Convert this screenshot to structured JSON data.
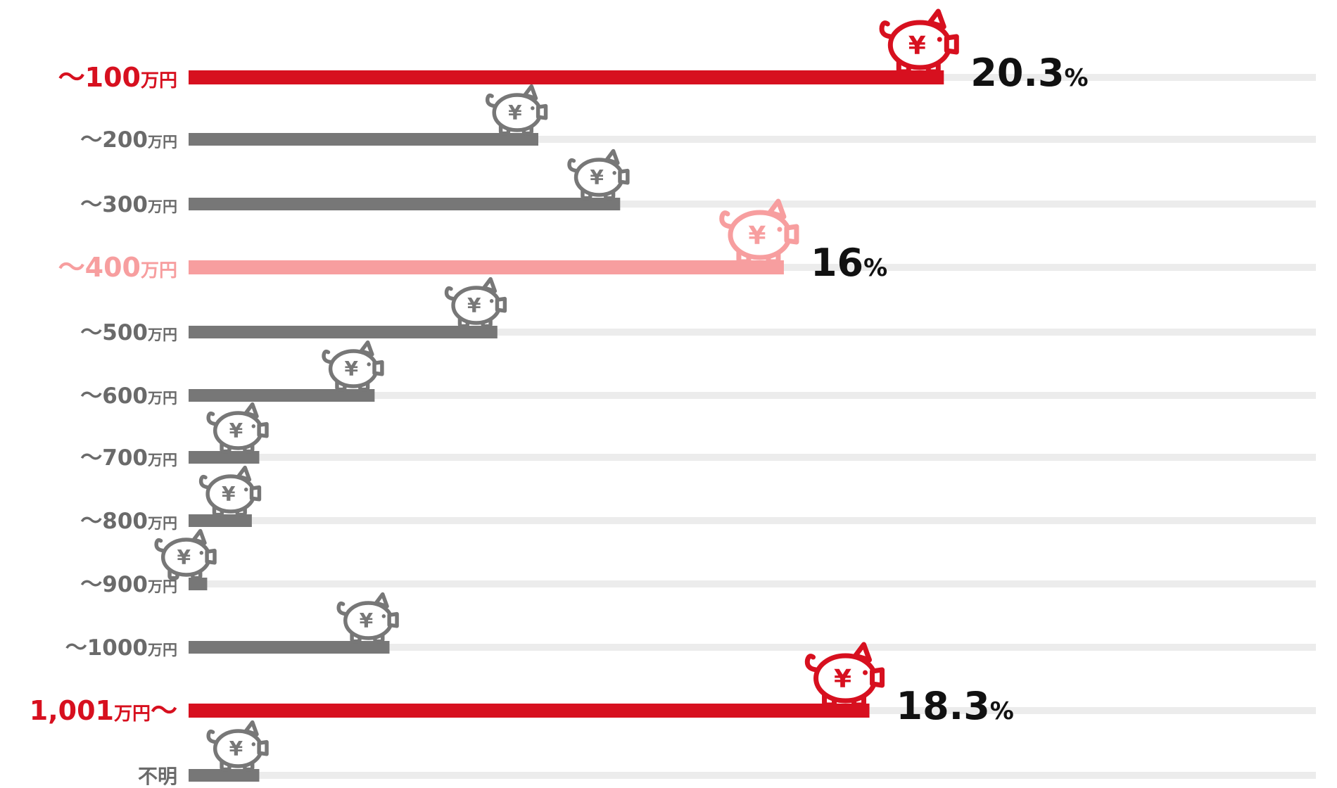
{
  "colors": {
    "highlight_red": "#d7101f",
    "highlight_pink": "#f79e9f",
    "default_gray": "#777777",
    "label_gray": "#6a6a6a",
    "track_gray": "#ececec"
  },
  "chart_data": {
    "type": "bar",
    "orientation": "horizontal",
    "categories": [
      "〜100万円",
      "〜200万円",
      "〜300万円",
      "〜400万円",
      "〜500万円",
      "〜600万円",
      "〜700万円",
      "〜800万円",
      "〜900万円",
      "〜1000万円",
      "1,001万円〜",
      "不明"
    ],
    "category_parts": [
      {
        "prefix": "〜",
        "number": "100",
        "unit": "万円",
        "suffix": ""
      },
      {
        "prefix": "〜",
        "number": "200",
        "unit": "万円",
        "suffix": ""
      },
      {
        "prefix": "〜",
        "number": "300",
        "unit": "万円",
        "suffix": ""
      },
      {
        "prefix": "〜",
        "number": "400",
        "unit": "万円",
        "suffix": ""
      },
      {
        "prefix": "〜",
        "number": "500",
        "unit": "万円",
        "suffix": ""
      },
      {
        "prefix": "〜",
        "number": "600",
        "unit": "万円",
        "suffix": ""
      },
      {
        "prefix": "〜",
        "number": "700",
        "unit": "万円",
        "suffix": ""
      },
      {
        "prefix": "〜",
        "number": "800",
        "unit": "万円",
        "suffix": ""
      },
      {
        "prefix": "〜",
        "number": "900",
        "unit": "万円",
        "suffix": ""
      },
      {
        "prefix": "〜",
        "number": "1000",
        "unit": "万円",
        "suffix": ""
      },
      {
        "prefix": "",
        "number": "1,001",
        "unit": "万円",
        "suffix": "〜"
      },
      {
        "prefix": "",
        "number": "",
        "unit": "不明",
        "suffix": ""
      }
    ],
    "values": [
      20.3,
      9.4,
      11.6,
      16.0,
      8.3,
      5.0,
      1.9,
      1.7,
      0.5,
      5.4,
      18.3,
      1.9
    ],
    "value_labels": [
      {
        "index": 0,
        "number": "20.3",
        "unit": "%"
      },
      {
        "index": 3,
        "number": "16",
        "unit": "%"
      },
      {
        "index": 10,
        "number": "18.3",
        "unit": "%"
      }
    ],
    "highlight": {
      "0": "highlight_red",
      "3": "highlight_pink",
      "10": "highlight_red"
    },
    "xlim": [
      0,
      30.3
    ],
    "icon": "piggy-bank-yen-icon",
    "icon_symbol": "¥",
    "grid": false,
    "legend": "none",
    "title": "",
    "xlabel": "",
    "ylabel": ""
  }
}
